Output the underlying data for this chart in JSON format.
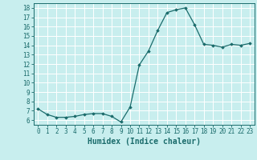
{
  "x": [
    0,
    1,
    2,
    3,
    4,
    5,
    6,
    7,
    8,
    9,
    10,
    11,
    12,
    13,
    14,
    15,
    16,
    17,
    18,
    19,
    20,
    21,
    22,
    23
  ],
  "y": [
    7.2,
    6.6,
    6.3,
    6.3,
    6.4,
    6.6,
    6.7,
    6.7,
    6.4,
    5.8,
    7.4,
    11.9,
    13.4,
    15.6,
    17.5,
    17.8,
    18.0,
    16.2,
    14.1,
    14.0,
    13.8,
    14.1,
    14.0,
    14.2
  ],
  "line_color": "#1a6b6b",
  "marker": "D",
  "marker_size": 1.8,
  "bg_color": "#c8eeee",
  "grid_color": "#ffffff",
  "xlabel": "Humidex (Indice chaleur)",
  "xlim": [
    -0.5,
    23.5
  ],
  "ylim": [
    5.5,
    18.5
  ],
  "yticks": [
    6,
    7,
    8,
    9,
    10,
    11,
    12,
    13,
    14,
    15,
    16,
    17,
    18
  ],
  "xticks": [
    0,
    1,
    2,
    3,
    4,
    5,
    6,
    7,
    8,
    9,
    10,
    11,
    12,
    13,
    14,
    15,
    16,
    17,
    18,
    19,
    20,
    21,
    22,
    23
  ],
  "tick_label_fontsize": 5.5,
  "xlabel_fontsize": 7.0,
  "linewidth": 0.9
}
